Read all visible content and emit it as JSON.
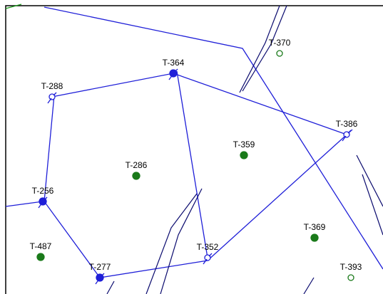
{
  "wells": [
    {
      "label": "T-370"
    },
    {
      "label": "T-364"
    },
    {
      "label": "T-288"
    },
    {
      "label": "T-386"
    },
    {
      "label": "T-359"
    },
    {
      "label": "T-286"
    },
    {
      "label": "T-256"
    },
    {
      "label": "T-369"
    },
    {
      "label": "T-487"
    },
    {
      "label": "T-352"
    },
    {
      "label": "T-277"
    },
    {
      "label": "T-393"
    }
  ]
}
